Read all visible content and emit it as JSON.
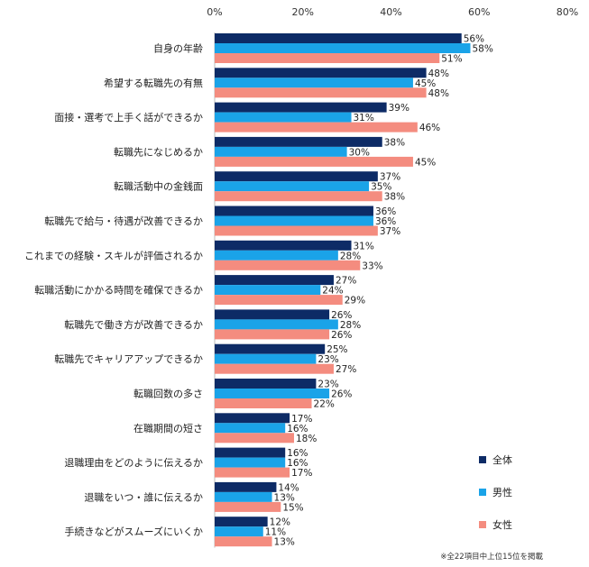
{
  "chart_data": {
    "type": "bar",
    "orientation": "horizontal",
    "xlim": [
      0,
      80
    ],
    "x_ticks": [
      "0%",
      "20%",
      "40%",
      "60%",
      "80%"
    ],
    "x_tick_values": [
      0,
      20,
      40,
      60,
      80
    ],
    "grid": false,
    "legend_position": "right",
    "categories": [
      "自身の年齢",
      "希望する転職先の有無",
      "面接・選考で上手く話ができるか",
      "転職先になじめるか",
      "転職活動中の金銭面",
      "転職先で給与・待遇が改善できるか",
      "これまでの経験・スキルが評価されるか",
      "転職活動にかかる時間を確保できるか",
      "転職先で働き方が改善できるか",
      "転職先でキャリアアップできるか",
      "転職回数の多さ",
      "在職期間の短さ",
      "退職理由をどのように伝えるか",
      "退職をいつ・誰に伝えるか",
      "手続きなどがスムーズにいくか"
    ],
    "series": [
      {
        "name": "全体",
        "color": "#0d2b66",
        "values": [
          56,
          48,
          39,
          38,
          37,
          36,
          31,
          27,
          26,
          25,
          23,
          17,
          16,
          14,
          12
        ]
      },
      {
        "name": "男性",
        "color": "#1aa3e8",
        "values": [
          58,
          45,
          31,
          30,
          35,
          36,
          28,
          24,
          28,
          23,
          26,
          16,
          16,
          13,
          11
        ]
      },
      {
        "name": "女性",
        "color": "#f48c7f",
        "values": [
          51,
          48,
          46,
          45,
          38,
          37,
          33,
          29,
          26,
          27,
          22,
          18,
          17,
          15,
          13
        ]
      }
    ],
    "value_suffix": "%",
    "note": "※全22項目中上位15位を掲載"
  }
}
